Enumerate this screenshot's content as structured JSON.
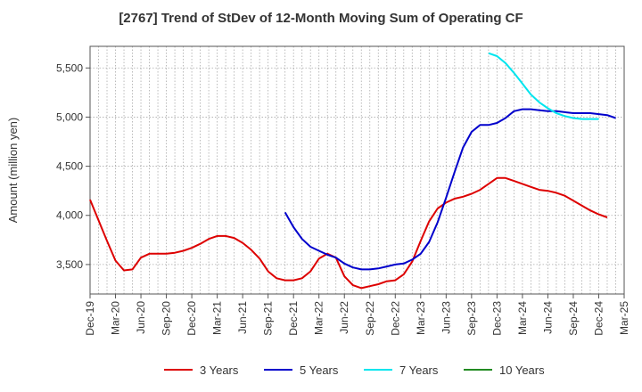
{
  "chart_data": {
    "type": "line",
    "title": "[2767]  Trend of StDev of 12-Month Moving Sum of Operating CF",
    "ylabel": "Amount (million yen)",
    "xlabel": "",
    "ylim": [
      3200,
      5720
    ],
    "yticks": [
      3500,
      4000,
      4500,
      5000,
      5500
    ],
    "ytick_labels": [
      "3,500",
      "4,000",
      "4,500",
      "5,000",
      "5,500"
    ],
    "xtick_labels": [
      "Dec-19",
      "Mar-20",
      "Jun-20",
      "Sep-20",
      "Dec-20",
      "Mar-21",
      "Jun-21",
      "Sep-21",
      "Dec-21",
      "Mar-22",
      "Jun-22",
      "Sep-22",
      "Dec-22",
      "Mar-23",
      "Jun-23",
      "Sep-23",
      "Dec-23",
      "Mar-24",
      "Jun-24",
      "Sep-24",
      "Dec-24",
      "Mar-25"
    ],
    "grid": true,
    "legend": "bottom",
    "series": [
      {
        "name": "3 Years",
        "color": "#dd0000",
        "start": "Dec-19",
        "values": [
          4160,
          3950,
          3740,
          3540,
          3440,
          3450,
          3570,
          3610,
          3610,
          3610,
          3620,
          3640,
          3670,
          3710,
          3760,
          3790,
          3790,
          3770,
          3720,
          3650,
          3560,
          3430,
          3360,
          3340,
          3340,
          3360,
          3430,
          3560,
          3610,
          3570,
          3380,
          3290,
          3260,
          3280,
          3300,
          3330,
          3340,
          3400,
          3530,
          3740,
          3940,
          4070,
          4130,
          4170,
          4190,
          4220,
          4260,
          4320,
          4380,
          4380,
          4350,
          4320,
          4290,
          4260,
          4250,
          4230,
          4200,
          4150,
          4100,
          4050,
          4010,
          3980
        ]
      },
      {
        "name": "5 Years",
        "color": "#0000cc",
        "start": "Nov-21",
        "values": [
          4030,
          3880,
          3760,
          3680,
          3640,
          3600,
          3570,
          3510,
          3470,
          3450,
          3450,
          3460,
          3480,
          3500,
          3510,
          3550,
          3610,
          3730,
          3930,
          4180,
          4440,
          4690,
          4850,
          4920,
          4920,
          4940,
          4990,
          5060,
          5080,
          5080,
          5070,
          5060,
          5060,
          5050,
          5040,
          5040,
          5040,
          5030,
          5020,
          4990
        ]
      },
      {
        "name": "7 Years",
        "color": "#00e5ee",
        "start": "Nov-23",
        "values": [
          5650,
          5620,
          5550,
          5450,
          5340,
          5230,
          5150,
          5090,
          5040,
          5010,
          4990,
          4980,
          4980,
          4980
        ]
      },
      {
        "name": "10 Years",
        "color": "#228b22",
        "start": "",
        "values": []
      }
    ]
  }
}
